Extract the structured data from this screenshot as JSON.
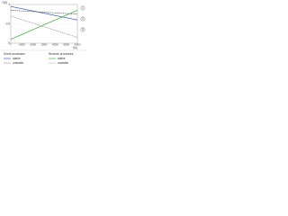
{
  "chart_data": {
    "type": "line",
    "y_label": "T(K)",
    "x_label": "t(s)",
    "x": [
      0,
      60000
    ],
    "xlim": [
      0,
      60000
    ],
    "xticks": [
      0,
      10000,
      20000,
      30000,
      40000,
      50000,
      60000
    ],
    "ylim": [
      0,
      1
    ],
    "yticks": [
      0,
      0.5,
      1
    ],
    "grid": true,
    "series": [
      {
        "name": "stable",
        "color": "#2b4a9b",
        "values": [
          0.95,
          0.6
        ]
      },
      {
        "name": "unstable",
        "color": "#444444",
        "values": [
          0.85,
          0.75
        ]
      },
      {
        "name": "stable",
        "color": "#3a9a3a",
        "values": [
          0.1,
          0.85
        ]
      },
      {
        "name": "unstable",
        "color": "#888888",
        "values": [
          0.7,
          0.15
        ]
      }
    ],
    "legend_groups": [
      "Direct processes",
      "Reverse processes"
    ],
    "annotations": [
      "1",
      "2",
      "3"
    ]
  }
}
